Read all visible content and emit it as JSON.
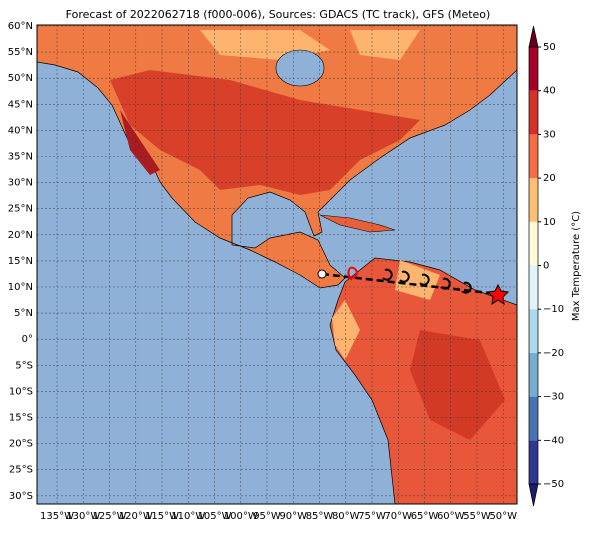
{
  "title": "Forecast of 2022062718 (f000-006), Sources: GDACS (TC track), GFS (Meteo)",
  "lat_labels": [
    "60°N",
    "55°N",
    "50°N",
    "45°N",
    "40°N",
    "35°N",
    "30°N",
    "25°N",
    "20°N",
    "15°N",
    "10°N",
    "5°N",
    "0°",
    "5°S",
    "10°S",
    "15°S",
    "20°S",
    "25°S",
    "30°S"
  ],
  "lon_labels": [
    "135°W",
    "130°W",
    "125°W",
    "120°W",
    "115°W",
    "110°W",
    "105°W",
    "100°W",
    "95°W",
    "90°W",
    "85°W",
    "80°W",
    "75°W",
    "70°W",
    "65°W",
    "60°W",
    "55°W",
    "50°W"
  ],
  "colorbar": {
    "label": "Max Temperature (°C)",
    "lim": [
      -50,
      50
    ],
    "ticks": [
      {
        "value": -50,
        "label": "−50"
      },
      {
        "value": -40,
        "label": "−40"
      },
      {
        "value": -30,
        "label": "−30"
      },
      {
        "value": -20,
        "label": "−20"
      },
      {
        "value": -10,
        "label": "−10"
      },
      0,
      10,
      20,
      30,
      40,
      50
    ]
  }
}
